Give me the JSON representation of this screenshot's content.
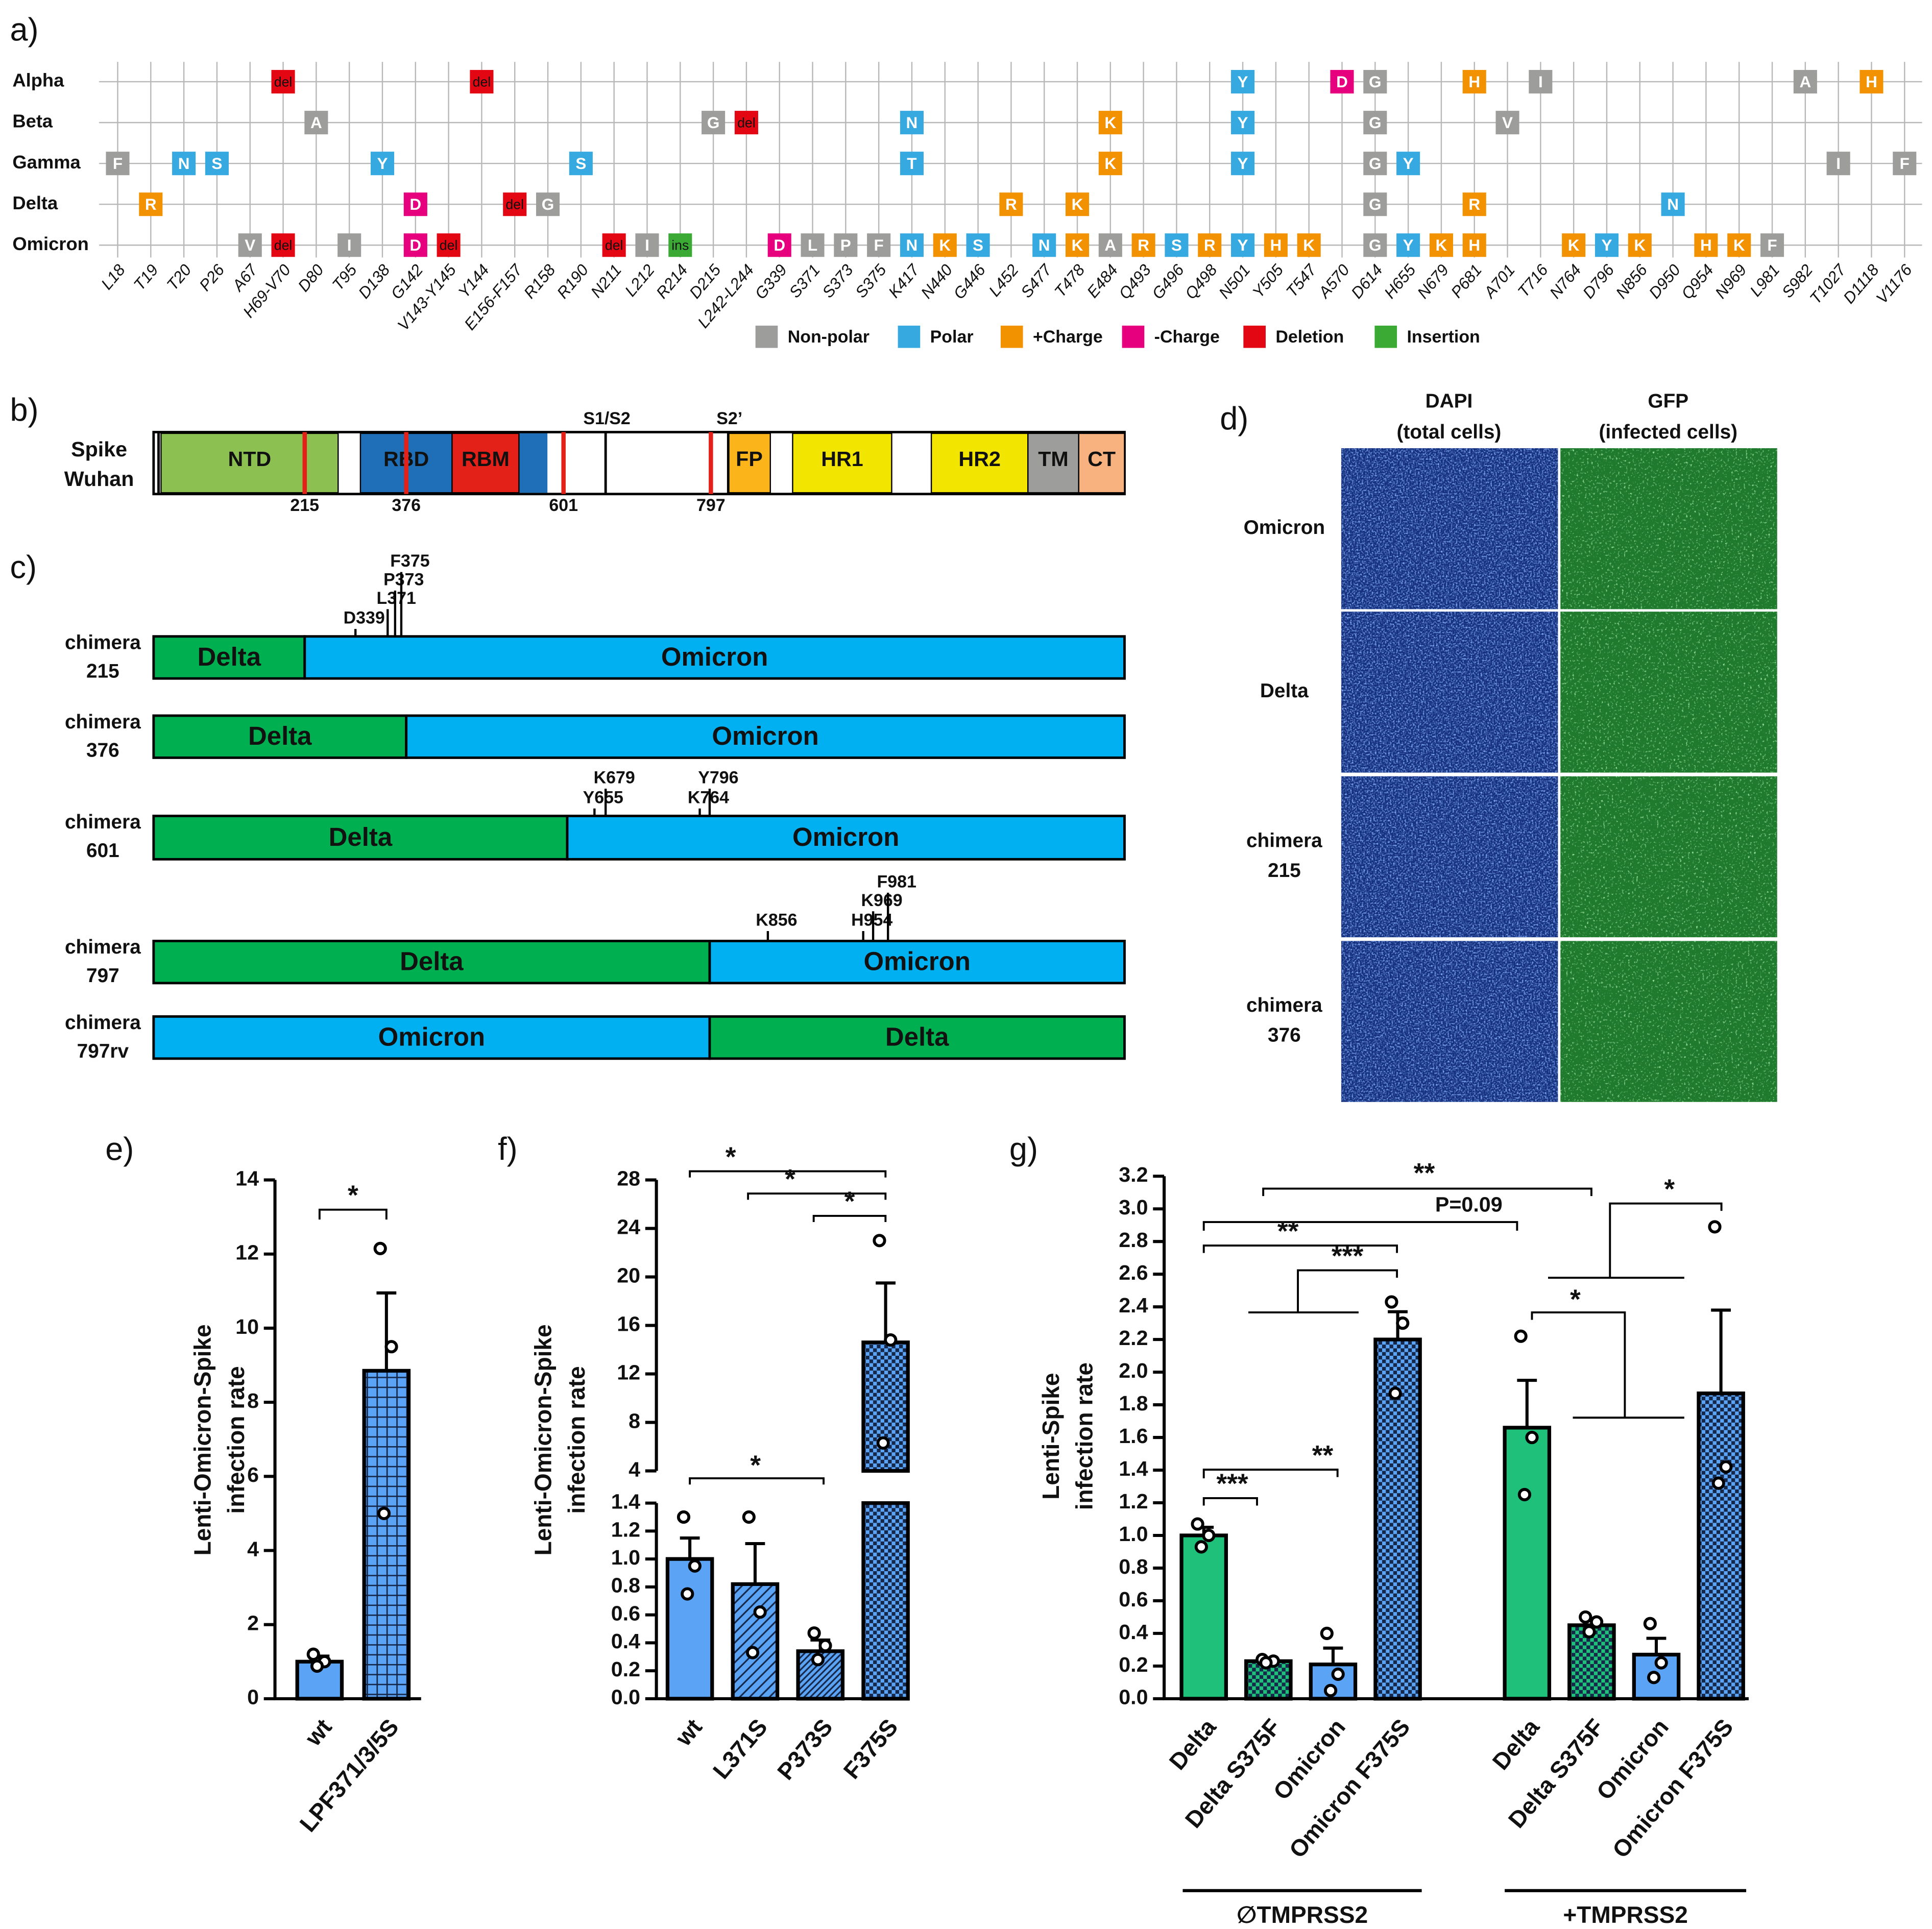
{
  "panel_labels": [
    "a)",
    "b)",
    "c)",
    "d)",
    "e)",
    "f)",
    "g)"
  ],
  "mutation_map": {
    "variants": [
      "Alpha",
      "Beta",
      "Gamma",
      "Delta",
      "Omicron"
    ],
    "positions": [
      "L18",
      "T19",
      "T20",
      "P26",
      "A67",
      "H69-V70",
      "D80",
      "T95",
      "D138",
      "G142",
      "V143-Y145",
      "Y144",
      "E156-F157",
      "R158",
      "R190",
      "N211",
      "L212",
      "R214",
      "D215",
      "L242-L244",
      "G339",
      "S371",
      "S373",
      "S375",
      "K417",
      "N440",
      "G446",
      "L452",
      "S477",
      "T478",
      "E484",
      "Q493",
      "G496",
      "Q498",
      "N501",
      "Y505",
      "T547",
      "A570",
      "D614",
      "H655",
      "N679",
      "P681",
      "A701",
      "T716",
      "N764",
      "D796",
      "N856",
      "D950",
      "Q954",
      "N969",
      "L981",
      "S982",
      "T1027",
      "D1118",
      "V1176"
    ],
    "legend": [
      {
        "label": "Non-polar",
        "color": "#9d9d9c"
      },
      {
        "label": "Polar",
        "color": "#36a9e1"
      },
      {
        "label": "+Charge",
        "color": "#f39200"
      },
      {
        "label": "-Charge",
        "color": "#e6007e"
      },
      {
        "label": "Deletion",
        "color": "#e30613"
      },
      {
        "label": "Insertion",
        "color": "#3aaa35"
      }
    ],
    "mutations": [
      [
        [
          "H69-V70",
          "del",
          "Deletion"
        ],
        [
          "Y144",
          "del",
          "Deletion"
        ],
        [
          "N501",
          "Y",
          "Polar"
        ],
        [
          "A570",
          "D",
          "-Charge"
        ],
        [
          "D614",
          "G",
          "Non-polar"
        ],
        [
          "P681",
          "H",
          "+Charge"
        ],
        [
          "T716",
          "I",
          "Non-polar"
        ],
        [
          "S982",
          "A",
          "Non-polar"
        ],
        [
          "D1118",
          "H",
          "+Charge"
        ]
      ],
      [
        [
          "D80",
          "A",
          "Non-polar"
        ],
        [
          "D215",
          "G",
          "Non-polar"
        ],
        [
          "L242-L244",
          "del",
          "Deletion"
        ],
        [
          "K417",
          "N",
          "Polar"
        ],
        [
          "E484",
          "K",
          "+Charge"
        ],
        [
          "N501",
          "Y",
          "Polar"
        ],
        [
          "D614",
          "G",
          "Non-polar"
        ],
        [
          "A701",
          "V",
          "Non-polar"
        ]
      ],
      [
        [
          "L18",
          "F",
          "Non-polar"
        ],
        [
          "T20",
          "N",
          "Polar"
        ],
        [
          "P26",
          "S",
          "Polar"
        ],
        [
          "D138",
          "Y",
          "Polar"
        ],
        [
          "R190",
          "S",
          "Polar"
        ],
        [
          "K417",
          "T",
          "Polar"
        ],
        [
          "E484",
          "K",
          "+Charge"
        ],
        [
          "N501",
          "Y",
          "Polar"
        ],
        [
          "D614",
          "G",
          "Non-polar"
        ],
        [
          "H655",
          "Y",
          "Polar"
        ],
        [
          "T1027",
          "I",
          "Non-polar"
        ],
        [
          "V1176",
          "F",
          "Non-polar"
        ]
      ],
      [
        [
          "T19",
          "R",
          "+Charge"
        ],
        [
          "G142",
          "D",
          "-Charge"
        ],
        [
          "E156-F157",
          "del",
          "Deletion"
        ],
        [
          "R158",
          "G",
          "Non-polar"
        ],
        [
          "L452",
          "R",
          "+Charge"
        ],
        [
          "T478",
          "K",
          "+Charge"
        ],
        [
          "D614",
          "G",
          "Non-polar"
        ],
        [
          "P681",
          "R",
          "+Charge"
        ],
        [
          "D950",
          "N",
          "Polar"
        ]
      ],
      [
        [
          "A67",
          "V",
          "Non-polar"
        ],
        [
          "H69-V70",
          "del",
          "Deletion"
        ],
        [
          "T95",
          "I",
          "Non-polar"
        ],
        [
          "G142",
          "D",
          "-Charge"
        ],
        [
          "V143-Y145",
          "del",
          "Deletion"
        ],
        [
          "N211",
          "del",
          "Deletion"
        ],
        [
          "L212",
          "I",
          "Non-polar"
        ],
        [
          "R214",
          "ins",
          "Insertion"
        ],
        [
          "G339",
          "D",
          "-Charge"
        ],
        [
          "S371",
          "L",
          "Non-polar"
        ],
        [
          "S373",
          "P",
          "Non-polar"
        ],
        [
          "S375",
          "F",
          "Non-polar"
        ],
        [
          "K417",
          "N",
          "Polar"
        ],
        [
          "N440",
          "K",
          "+Charge"
        ],
        [
          "G446",
          "S",
          "Polar"
        ],
        [
          "S477",
          "N",
          "Polar"
        ],
        [
          "T478",
          "K",
          "+Charge"
        ],
        [
          "E484",
          "A",
          "Non-polar"
        ],
        [
          "Q493",
          "R",
          "+Charge"
        ],
        [
          "G496",
          "S",
          "Polar"
        ],
        [
          "Q498",
          "R",
          "+Charge"
        ],
        [
          "N501",
          "Y",
          "Polar"
        ],
        [
          "Y505",
          "H",
          "+Charge"
        ],
        [
          "T547",
          "K",
          "+Charge"
        ],
        [
          "D614",
          "G",
          "Non-polar"
        ],
        [
          "H655",
          "Y",
          "Polar"
        ],
        [
          "N679",
          "K",
          "+Charge"
        ],
        [
          "P681",
          "H",
          "+Charge"
        ],
        [
          "N764",
          "K",
          "+Charge"
        ],
        [
          "D796",
          "Y",
          "Polar"
        ],
        [
          "N856",
          "K",
          "+Charge"
        ],
        [
          "Q954",
          "H",
          "+Charge"
        ],
        [
          "N969",
          "K",
          "+Charge"
        ],
        [
          "L981",
          "F",
          "Non-polar"
        ]
      ]
    ]
  },
  "spike": {
    "name": [
      "Spike",
      "Wuhan"
    ],
    "domains": [
      "NTD",
      "RBD",
      "RBM",
      "FP",
      "HR1",
      "HR2",
      "TM",
      "CT"
    ],
    "sites": [
      215,
      376,
      601,
      797
    ],
    "cleavage": [
      "S1/S2",
      "S2’"
    ]
  },
  "chimeras": {
    "colors": {
      "Delta": "#00b050",
      "Omicron": "#00b0f0"
    },
    "items": [
      {
        "label": [
          "chimera",
          "215"
        ],
        "segments": [
          "Delta",
          "Omicron"
        ],
        "mutations": [
          "D339",
          "L371",
          "P373",
          "F375"
        ]
      },
      {
        "label": [
          "chimera",
          "376"
        ],
        "segments": [
          "Delta",
          "Omicron"
        ],
        "mutations": []
      },
      {
        "label": [
          "chimera",
          "601"
        ],
        "segments": [
          "Delta",
          "Omicron"
        ],
        "mutations": [
          "Y655",
          "K679",
          "K764",
          "Y796"
        ]
      },
      {
        "label": [
          "chimera",
          "797"
        ],
        "segments": [
          "Delta",
          "Omicron"
        ],
        "mutations": [
          "K856",
          "H954",
          "K969",
          "F981"
        ]
      },
      {
        "label": [
          "chimera",
          "797rv"
        ],
        "segments": [
          "Omicron",
          "Delta"
        ],
        "mutations": []
      }
    ]
  },
  "microscopy": {
    "columns": [
      [
        "DAPI",
        "(total cells)"
      ],
      [
        "GFP",
        "(infected cells)"
      ]
    ],
    "rows": [
      [
        "Omicron"
      ],
      [
        "Delta"
      ],
      [
        "chimera",
        "215"
      ],
      [
        "chimera",
        "376"
      ]
    ]
  },
  "chart_data": [
    {
      "type": "bar",
      "y_label": [
        "Lenti-Omicron-Spike",
        "infection rate"
      ],
      "categories": [
        "wt",
        "LPF371/3/5S"
      ],
      "values": [
        1.0,
        8.85
      ],
      "errors": [
        0.15,
        2.1
      ],
      "points": [
        [
          1.2,
          1.0,
          0.88
        ],
        [
          12.15,
          9.5,
          5.0
        ]
      ],
      "colors": [
        "#5ba3f5",
        "#5ba3f5"
      ],
      "patterns": [
        "solid",
        "grid"
      ],
      "ylim": [
        0,
        14
      ],
      "yticks": [
        0,
        2,
        4,
        6,
        8,
        10,
        12,
        14
      ],
      "significance": [
        "*"
      ]
    },
    {
      "type": "broken-bar",
      "y_label": [
        "Lenti-Omicron-Spike",
        "infection rate"
      ],
      "categories": [
        "wt",
        "L371S",
        "P373S",
        "F375S"
      ],
      "values": [
        1.0,
        0.82,
        0.34,
        14.6
      ],
      "errors": [
        0.15,
        0.29,
        0.08,
        4.9
      ],
      "points": [
        [
          1.3,
          0.95,
          0.75
        ],
        [
          1.3,
          0.62,
          0.33
        ],
        [
          0.47,
          0.38,
          0.28
        ],
        [
          23,
          14.8,
          6.3
        ]
      ],
      "colors": [
        "#5ba3f5",
        "#5ba3f5",
        "#5ba3f5",
        "#5ba3f5"
      ],
      "patterns": [
        "solid",
        "hatch",
        "hatch-dense",
        "checker"
      ],
      "segments": [
        {
          "ylim": [
            0,
            1.4
          ],
          "yticks": [
            {
              "value": 0,
              "label": "0.0"
            },
            {
              "value": 0.2,
              "label": "0.2"
            },
            {
              "value": 0.4,
              "label": "0.4"
            },
            {
              "value": 0.6,
              "label": "0.6"
            },
            {
              "value": 0.8,
              "label": "0.8"
            },
            {
              "value": 1,
              "label": "1.0"
            },
            {
              "value": 1.2,
              "label": "1.2"
            },
            {
              "value": 1.4,
              "label": "1.4"
            }
          ]
        },
        {
          "ylim": [
            4,
            28
          ],
          "yticks": [
            4,
            8,
            12,
            16,
            20,
            24,
            28
          ]
        }
      ],
      "significance": [
        "*",
        "*",
        "*",
        "*"
      ]
    },
    {
      "type": "bar",
      "y_label": [
        "Lenti-Spike",
        "infection rate"
      ],
      "categories": [
        "Delta",
        "Delta S375F",
        "Omicron",
        "Omicron F375S",
        "Delta",
        "Delta S375F",
        "Omicron",
        "Omicron F375S"
      ],
      "groups": [
        "∅TMPRSS2",
        "+TMPRSS2"
      ],
      "values": [
        1.0,
        0.23,
        0.21,
        2.2,
        1.66,
        0.45,
        0.27,
        1.87
      ],
      "errors": [
        0.05,
        0.02,
        0.1,
        0.17,
        0.29,
        0.04,
        0.1,
        0.51
      ],
      "points": [
        [
          1.07,
          1.0,
          0.93
        ],
        [
          0.24,
          0.23,
          0.22
        ],
        [
          0.4,
          0.15,
          0.05
        ],
        [
          2.43,
          2.3,
          1.87
        ],
        [
          2.22,
          1.6,
          1.25
        ],
        [
          0.5,
          0.47,
          0.41
        ],
        [
          0.46,
          0.22,
          0.13
        ],
        [
          2.89,
          1.42,
          1.32
        ]
      ],
      "colors": [
        "#1ec07a",
        "#1ec07a",
        "#5ba3f5",
        "#5ba3f5",
        "#1ec07a",
        "#1ec07a",
        "#5ba3f5",
        "#5ba3f5"
      ],
      "patterns": [
        "solid",
        "checker",
        "solid",
        "checker",
        "solid",
        "checker",
        "solid",
        "checker"
      ],
      "ylim": [
        0,
        3.2
      ],
      "yticks": [
        {
          "value": 0,
          "label": "0.0"
        },
        {
          "value": 0.2,
          "label": "0.2"
        },
        {
          "value": 0.4,
          "label": "0.4"
        },
        {
          "value": 0.6,
          "label": "0.6"
        },
        {
          "value": 0.8,
          "label": "0.8"
        },
        {
          "value": 1,
          "label": "1.0"
        },
        {
          "value": 1.2,
          "label": "1.2"
        },
        {
          "value": 1.4,
          "label": "1.4"
        },
        {
          "value": 1.6,
          "label": "1.6"
        },
        {
          "value": 1.8,
          "label": "1.8"
        },
        {
          "value": 2,
          "label": "2.0"
        },
        {
          "value": 2.2,
          "label": "2.2"
        },
        {
          "value": 2.4,
          "label": "2.4"
        },
        {
          "value": 2.6,
          "label": "2.6"
        },
        {
          "value": 2.8,
          "label": "2.8"
        },
        {
          "value": 3,
          "label": "3.0"
        },
        {
          "value": 3.2,
          "label": "3.2"
        }
      ],
      "significance": [
        "**",
        "P=0.09",
        "**",
        "***",
        "*",
        "*",
        "**",
        "***"
      ]
    }
  ]
}
